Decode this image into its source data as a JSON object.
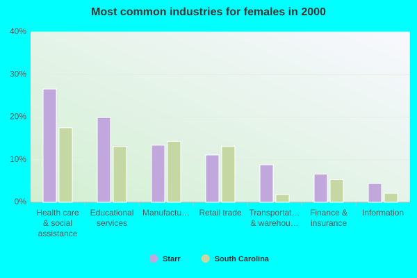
{
  "chart_data": {
    "type": "bar",
    "title": "Most common industries for females in 2000",
    "categories": [
      "Health care\n& social\nassistance",
      "Educational\nservices",
      "Manufactu…",
      "Retail trade",
      "Transportat…\n& warehou…",
      "Finance &\ninsurance",
      "Information"
    ],
    "series": [
      {
        "name": "Starr",
        "color": "#c0a8dc",
        "values": [
          26.6,
          19.9,
          13.4,
          11.1,
          8.8,
          6.6,
          4.4
        ]
      },
      {
        "name": "South Carolina",
        "color": "#c5d8a4",
        "values": [
          17.5,
          13.1,
          14.3,
          13.1,
          1.8,
          5.3,
          2.1
        ]
      }
    ],
    "ylim": [
      0,
      40
    ],
    "yticks": [
      {
        "value": 0,
        "label": "0%"
      },
      {
        "value": 10,
        "label": "10%"
      },
      {
        "value": 20,
        "label": "20%"
      },
      {
        "value": 30,
        "label": "30%"
      },
      {
        "value": 40,
        "label": "40%"
      }
    ],
    "grid": true
  }
}
